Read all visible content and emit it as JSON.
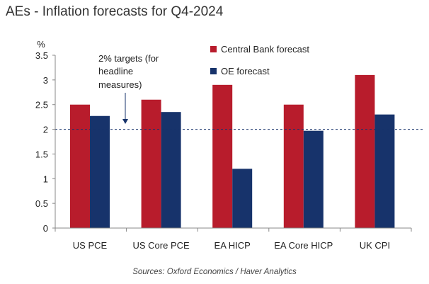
{
  "chart_data": {
    "type": "bar",
    "title": "AEs - Inflation forecasts for Q4-2024",
    "ylabel": "%",
    "ylim": [
      0,
      3.5
    ],
    "yticks": [
      "0",
      "0.5",
      "1",
      "1.5",
      "2",
      "2.5",
      "3",
      "3.5"
    ],
    "categories": [
      "US PCE",
      "US Core PCE",
      "EA HICP",
      "EA Core HICP",
      "UK CPI"
    ],
    "series": [
      {
        "name": "Central Bank forecast",
        "color": "#b81c2c",
        "values": [
          2.5,
          2.6,
          2.9,
          2.5,
          3.1
        ]
      },
      {
        "name": "OE forecast",
        "color": "#17336b",
        "values": [
          2.27,
          2.35,
          1.2,
          1.97,
          2.3
        ]
      }
    ],
    "reference_line": {
      "value": 2,
      "style": "dashed"
    },
    "annotation": [
      "2% targets (for",
      "headline",
      "measures)"
    ],
    "legend_position": "top-right",
    "grid": false,
    "source": "Sources: Oxford Economics / Haver Analytics"
  }
}
